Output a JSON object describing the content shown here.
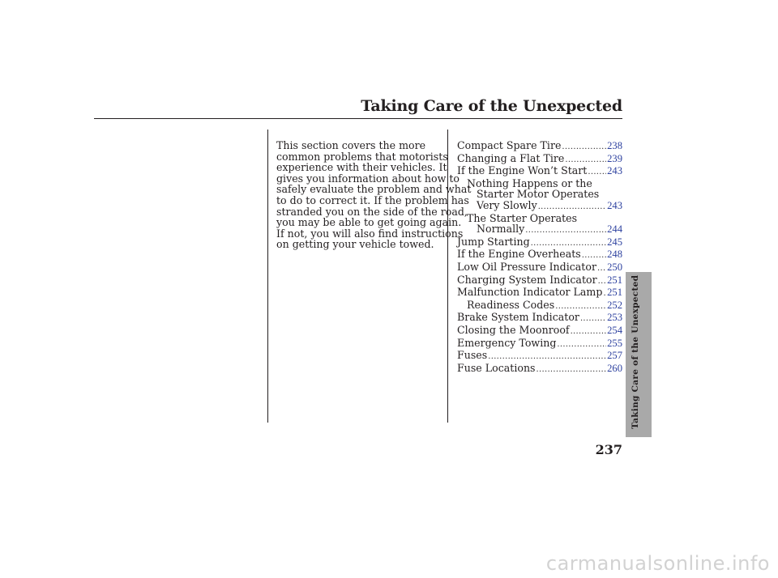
{
  "header": {
    "title": "Taking Care of the Unexpected"
  },
  "intro": {
    "lines": [
      "This section covers the more",
      "common problems that motorists",
      "experience with their vehicles. It",
      "gives you information about how to",
      "safely evaluate the problem and what",
      "to do to correct it. If the problem has",
      "stranded you on the side of the road,",
      "you may be able to get going again.",
      "If not, you will also find instructions",
      "on getting your vehicle towed."
    ]
  },
  "toc": [
    {
      "label": "Compact Spare Tire",
      "page": "238"
    },
    {
      "label": "Changing a Flat Tire",
      "page": "239"
    },
    {
      "label": "If the Engine Won’t Start",
      "page": "243"
    },
    {
      "label": "Nothing Happens or the",
      "page": ""
    },
    {
      "label": "Starter Motor Operates",
      "page": ""
    },
    {
      "label": "Very Slowly",
      "page": "243"
    },
    {
      "label": "The Starter Operates",
      "page": ""
    },
    {
      "label": "Normally",
      "page": "244"
    },
    {
      "label": "Jump Starting",
      "page": "245"
    },
    {
      "label": "If the Engine Overheats",
      "page": "248"
    },
    {
      "label": "Low Oil Pressure Indicator",
      "page": "250"
    },
    {
      "label": "Charging System Indicator",
      "page": "251"
    },
    {
      "label": "Malfunction Indicator Lamp",
      "page": "251"
    },
    {
      "label": "Readiness Codes",
      "page": "252"
    },
    {
      "label": "Brake System Indicator",
      "page": "253"
    },
    {
      "label": "Closing the Moonroof",
      "page": "254"
    },
    {
      "label": "Emergency Towing",
      "page": "255"
    },
    {
      "label": "Fuses",
      "page": "257"
    },
    {
      "label": "Fuse Locations",
      "page": "260"
    }
  ],
  "side_tab": {
    "label": "Taking Care of the Unexpected"
  },
  "page_number": "237",
  "watermark": "carmanualsonline.info"
}
